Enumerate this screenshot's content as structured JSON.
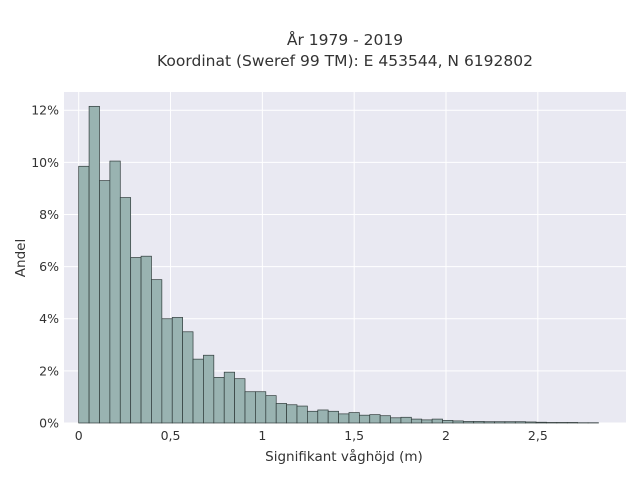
{
  "chart_data": {
    "type": "bar",
    "title_line1": "År 1979 - 2019",
    "title_line2": "Koordinat (Sweref 99 TM): E 453544, N 6192802",
    "xlabel": "Signifikant våghöjd (m)",
    "ylabel": "Andel",
    "xlim": [
      -0.08,
      2.98
    ],
    "ylim": [
      0,
      12.7
    ],
    "xticks": [
      0,
      0.5,
      1,
      1.5,
      2,
      2.5
    ],
    "xtick_labels": [
      "0",
      "0,5",
      "1",
      "1,5",
      "2",
      "2,5"
    ],
    "yticks": [
      0,
      2,
      4,
      6,
      8,
      10,
      12
    ],
    "ytick_labels": [
      "0%",
      "2%",
      "4%",
      "6%",
      "8%",
      "10%",
      "12%"
    ],
    "grid": true,
    "bin_start": 0.0,
    "bin_width": 0.0566,
    "values": [
      9.85,
      12.15,
      9.3,
      10.05,
      8.65,
      6.35,
      6.4,
      5.5,
      4.0,
      4.05,
      3.5,
      2.45,
      2.6,
      1.75,
      1.95,
      1.7,
      1.2,
      1.2,
      1.05,
      0.75,
      0.7,
      0.65,
      0.45,
      0.5,
      0.45,
      0.35,
      0.4,
      0.3,
      0.32,
      0.28,
      0.2,
      0.22,
      0.15,
      0.12,
      0.15,
      0.1,
      0.08,
      0.06,
      0.06,
      0.05,
      0.05,
      0.05,
      0.05,
      0.04,
      0.03,
      0.02,
      0.02,
      0.02,
      0.01,
      0.01
    ],
    "colors": {
      "background": "#e9e9f2",
      "bar_fill": "#99b3b1",
      "bar_edge": "#2f3b3a",
      "grid": "#ffffff"
    }
  }
}
